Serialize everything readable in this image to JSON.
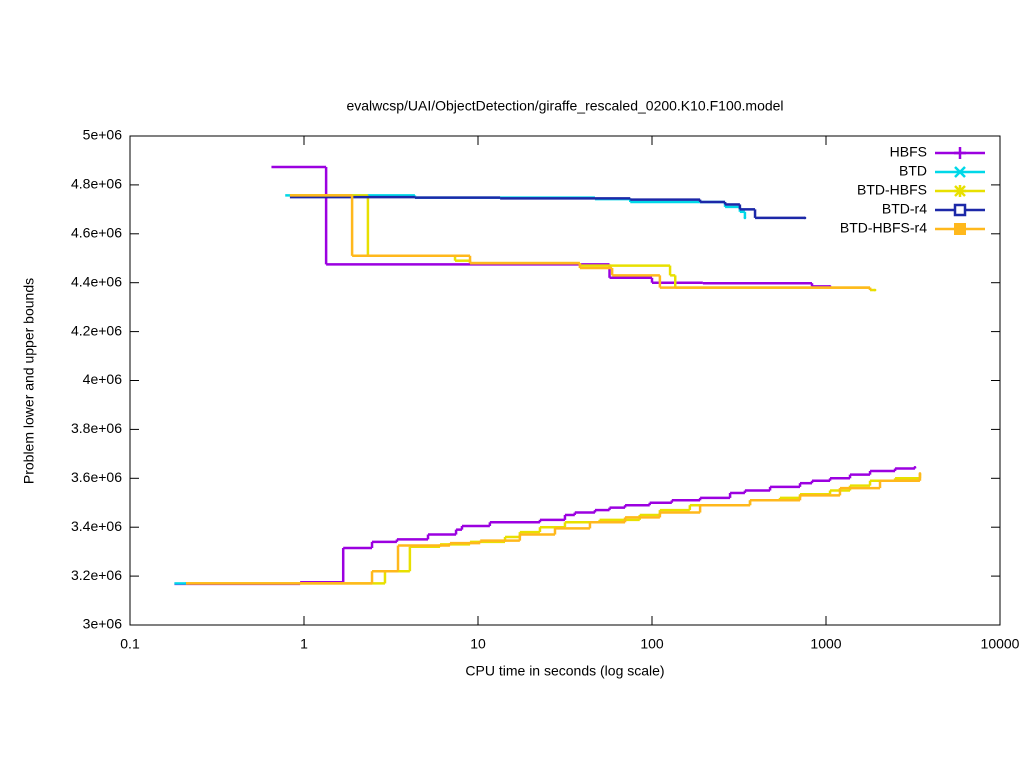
{
  "chart_data": {
    "type": "line",
    "title": "evalwcsp/UAI/ObjectDetection/giraffe_rescaled_0200.K10.F100.model",
    "x_label": "CPU time in seconds (log scale)",
    "y_label": "Problem lower and upper bounds",
    "xscale": "log",
    "step": true,
    "legend": "top right",
    "xlim": [
      0.1,
      10000
    ],
    "xticks": [
      0.1,
      1,
      10,
      100,
      1000,
      10000
    ],
    "ylim": [
      3000000,
      5000000
    ],
    "yticks": [
      {
        "value": 3000000,
        "label": "3e+06"
      },
      {
        "value": 3200000,
        "label": "3.2e+06"
      },
      {
        "value": 3400000,
        "label": "3.4e+06"
      },
      {
        "value": 3600000,
        "label": "3.6e+06"
      },
      {
        "value": 3800000,
        "label": "3.8e+06"
      },
      {
        "value": 4000000,
        "label": "4e+06"
      },
      {
        "value": 4200000,
        "label": "4.2e+06"
      },
      {
        "value": 4400000,
        "label": "4.4e+06"
      },
      {
        "value": 4600000,
        "label": "4.6e+06"
      },
      {
        "value": 4800000,
        "label": "4.8e+06"
      },
      {
        "value": 5000000,
        "label": "5e+06"
      }
    ],
    "series": [
      {
        "name": "HBFS",
        "color": "#9b00e0",
        "marker": "plus",
        "x": [
          0.65,
          1.34,
          57,
          100,
          196,
          831,
          1055,
          null,
          0.18,
          0.95,
          1.68,
          2.46,
          3.42,
          5.16,
          7.48,
          8.09,
          11.7,
          22.7,
          31.6,
          36,
          47,
          57,
          70,
          97,
          130,
          189,
          281,
          342,
          477,
          709,
          831,
          1055,
          1374,
          1791,
          2494,
          3245
        ],
        "values": [
          4873000,
          4475000,
          4420000,
          4400000,
          4398000,
          4385000,
          4385000,
          null,
          3168000,
          3175000,
          3315000,
          3340000,
          3350000,
          3370000,
          3390000,
          3405000,
          3420000,
          3430000,
          3450000,
          3460000,
          3470000,
          3480000,
          3490000,
          3500000,
          3510000,
          3520000,
          3540000,
          3550000,
          3565000,
          3580000,
          3590000,
          3600000,
          3615000,
          3630000,
          3640000,
          3645000
        ]
      },
      {
        "name": "BTD",
        "color": "#00d8e8",
        "marker": "cross",
        "x": [
          0.78,
          4.34,
          47,
          75,
          263,
          320,
          342,
          null,
          0.18,
          0.21
        ],
        "values": [
          4757000,
          4748000,
          4742000,
          4730000,
          4710000,
          4690000,
          4665000,
          null,
          3170000,
          3170000
        ]
      },
      {
        "name": "BTD-HBFS",
        "color": "#e8e000",
        "marker": "star",
        "x": [
          0.83,
          2.33,
          7.38,
          9.0,
          38.5,
          127,
          136,
          1791,
          1914,
          null,
          0.21,
          2.92,
          4.06,
          6.05,
          9.0,
          14.3,
          17.4,
          22.7,
          31.6,
          50,
          85,
          111,
          165,
          366,
          544,
          709,
          1055,
          1374,
          1791,
          2494,
          3467
        ],
        "values": [
          4757000,
          4510000,
          4490000,
          4480000,
          4470000,
          4430000,
          4380000,
          4370000,
          4370000,
          null,
          3170000,
          3220000,
          3320000,
          3330000,
          3340000,
          3360000,
          3380000,
          3400000,
          3420000,
          3430000,
          3450000,
          3470000,
          3490000,
          3510000,
          3520000,
          3535000,
          3550000,
          3570000,
          3590000,
          3600000,
          3615000
        ]
      },
      {
        "name": "BTD-r4",
        "color": "#1c28a8",
        "marker": "square",
        "x": [
          0.83,
          4.34,
          13.4,
          75,
          189,
          263,
          320,
          391,
          757
        ],
        "values": [
          4750000,
          4748000,
          4745000,
          4740000,
          4730000,
          4720000,
          4700000,
          4665000,
          4665000
        ]
      },
      {
        "name": "BTD-HBFS-r4",
        "color": "#ffb81c",
        "marker": "filled-square",
        "x": [
          0.83,
          1.89,
          9.0,
          38.5,
          59,
          111,
          1791,
          null,
          0.21,
          2.46,
          3.47,
          6.9,
          10.3,
          17.4,
          27.7,
          44,
          70,
          111,
          189,
          366,
          709,
          1203,
          2044,
          3467
        ],
        "values": [
          4757000,
          4510000,
          4480000,
          4460000,
          4430000,
          4380000,
          4375000,
          null,
          3170000,
          3220000,
          3325000,
          3335000,
          3345000,
          3370000,
          3395000,
          3420000,
          3440000,
          3460000,
          3490000,
          3510000,
          3530000,
          3560000,
          3590000,
          3620000
        ]
      }
    ]
  }
}
